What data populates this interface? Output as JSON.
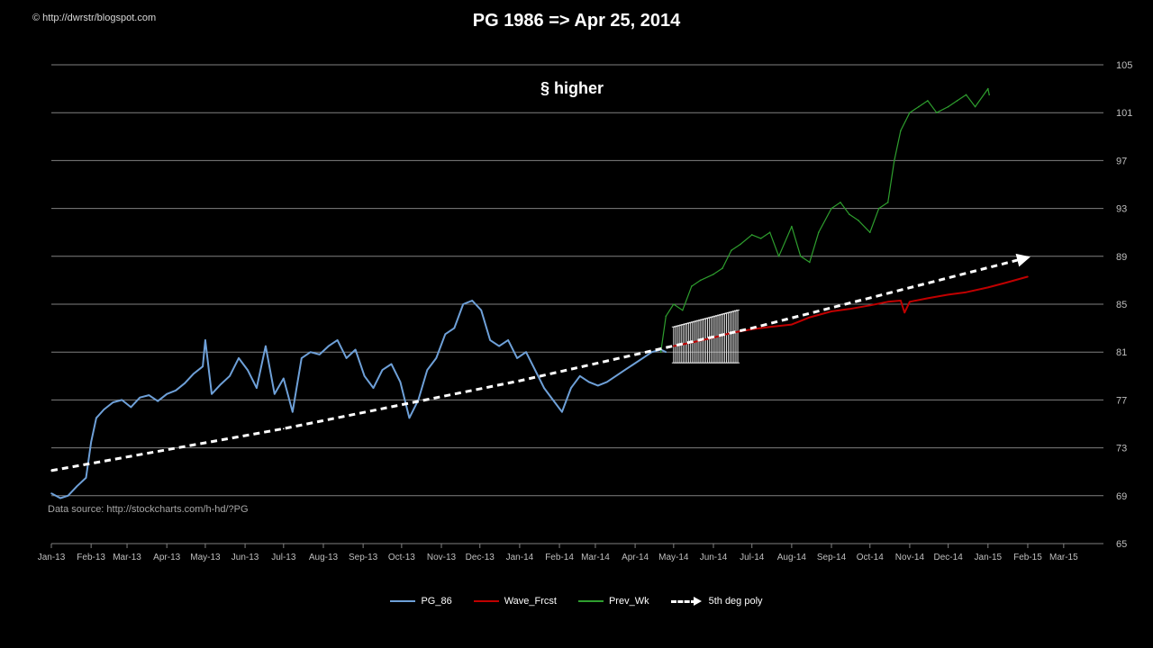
{
  "header": {
    "title": "PG 1986 => Apr 25, 2014",
    "copyright": "© http://dwrstr/blogspot.com",
    "annotation": "§  higher",
    "source": "Data source: http://stockcharts.com/h-hd/?PG"
  },
  "colors": {
    "background": "#000000",
    "gridline": "#808080",
    "pg86": "#6ea0d8",
    "wave_frcst": "#c00000",
    "prev_wk": "#2e9e2e",
    "poly": "#ffffff",
    "errorbar": "#e6e6e6",
    "text": "#ffffff"
  },
  "chart_data": {
    "type": "line",
    "title": "PG 1986 => Apr 25, 2014",
    "x_type": "date",
    "xlim": [
      "2013-01-01",
      "2015-04-01"
    ],
    "ylim": [
      65,
      105
    ],
    "y_axis_side": "right",
    "y_ticks": [
      65,
      69,
      73,
      77,
      81,
      85,
      89,
      93,
      97,
      101,
      105
    ],
    "x_tick_labels": [
      "Jan-13",
      "Feb-13",
      "Mar-13",
      "Apr-13",
      "May-13",
      "Jun-13",
      "Jul-13",
      "Aug-13",
      "Sep-13",
      "Oct-13",
      "Nov-13",
      "Dec-13",
      "Jan-14",
      "Feb-14",
      "Mar-14",
      "Apr-14",
      "May-14",
      "Jun-14",
      "Jul-14",
      "Aug-14",
      "Sep-14",
      "Oct-14",
      "Nov-14",
      "Dec-14",
      "Jan-15",
      "Feb-15",
      "Mar-15"
    ],
    "x_tick_dates": [
      "2013-01-01",
      "2013-02-01",
      "2013-03-01",
      "2013-04-01",
      "2013-05-01",
      "2013-06-01",
      "2013-07-01",
      "2013-08-01",
      "2013-09-01",
      "2013-10-01",
      "2013-11-01",
      "2013-12-01",
      "2014-01-01",
      "2014-02-01",
      "2014-03-01",
      "2014-04-01",
      "2014-05-01",
      "2014-06-01",
      "2014-07-01",
      "2014-08-01",
      "2014-09-01",
      "2014-10-01",
      "2014-11-01",
      "2014-12-01",
      "2015-01-01",
      "2015-02-01",
      "2015-03-01"
    ],
    "grid": true,
    "legend_position": "bottom",
    "series": [
      {
        "name": "PG_86",
        "color": "#6ea0d8",
        "x": [
          "2013-01-01",
          "2013-01-08",
          "2013-01-14",
          "2013-01-21",
          "2013-01-28",
          "2013-02-01",
          "2013-02-05",
          "2013-02-11",
          "2013-02-18",
          "2013-02-25",
          "2013-03-04",
          "2013-03-11",
          "2013-03-18",
          "2013-03-25",
          "2013-04-01",
          "2013-04-08",
          "2013-04-15",
          "2013-04-22",
          "2013-04-29",
          "2013-05-01",
          "2013-05-06",
          "2013-05-13",
          "2013-05-20",
          "2013-05-27",
          "2013-06-03",
          "2013-06-10",
          "2013-06-17",
          "2013-06-24",
          "2013-07-01",
          "2013-07-08",
          "2013-07-15",
          "2013-07-22",
          "2013-07-29",
          "2013-08-05",
          "2013-08-12",
          "2013-08-19",
          "2013-08-26",
          "2013-09-02",
          "2013-09-09",
          "2013-09-16",
          "2013-09-23",
          "2013-09-30",
          "2013-10-07",
          "2013-10-14",
          "2013-10-21",
          "2013-10-28",
          "2013-11-04",
          "2013-11-11",
          "2013-11-18",
          "2013-11-25",
          "2013-12-02",
          "2013-12-09",
          "2013-12-16",
          "2013-12-23",
          "2013-12-30",
          "2014-01-06",
          "2014-01-13",
          "2014-01-20",
          "2014-01-27",
          "2014-02-03",
          "2014-02-10",
          "2014-02-17",
          "2014-02-24",
          "2014-03-03",
          "2014-03-10",
          "2014-03-17",
          "2014-03-24",
          "2014-03-31",
          "2014-04-07",
          "2014-04-14",
          "2014-04-21",
          "2014-04-25"
        ],
        "values": [
          69.2,
          68.8,
          69.0,
          69.8,
          70.5,
          73.5,
          75.5,
          76.2,
          76.8,
          77.0,
          76.4,
          77.2,
          77.4,
          76.9,
          77.5,
          77.8,
          78.4,
          79.2,
          79.8,
          82.0,
          77.5,
          78.3,
          79.0,
          80.5,
          79.5,
          78.0,
          81.5,
          77.5,
          78.8,
          76.0,
          80.5,
          81.0,
          80.8,
          81.5,
          82.0,
          80.5,
          81.2,
          79.0,
          78.0,
          79.5,
          80.0,
          78.5,
          75.5,
          77.0,
          79.5,
          80.5,
          82.5,
          83.0,
          85.0,
          85.3,
          84.5,
          82.0,
          81.5,
          82.0,
          80.5,
          81.0,
          79.5,
          78.0,
          77.0,
          76.0,
          78.0,
          79.0,
          78.5,
          78.2,
          78.5,
          79.0,
          79.5,
          80.0,
          80.5,
          81.0,
          81.2,
          81.0
        ]
      },
      {
        "name": "Wave_Frcst",
        "color": "#c00000",
        "x": [
          "2014-05-01",
          "2014-05-15",
          "2014-06-01",
          "2014-06-15",
          "2014-07-01",
          "2014-07-15",
          "2014-08-01",
          "2014-08-15",
          "2014-09-01",
          "2014-09-15",
          "2014-10-01",
          "2014-10-15",
          "2014-10-25",
          "2014-10-28",
          "2014-11-01",
          "2014-11-15",
          "2014-12-01",
          "2014-12-15",
          "2015-01-01",
          "2015-01-15",
          "2015-02-01"
        ],
        "values": [
          81.5,
          81.8,
          82.2,
          82.6,
          82.9,
          83.1,
          83.3,
          83.9,
          84.4,
          84.6,
          84.9,
          85.2,
          85.3,
          84.3,
          85.2,
          85.5,
          85.8,
          86.0,
          86.4,
          86.8,
          87.3
        ]
      },
      {
        "name": "Prev_Wk",
        "color": "#2e9e2e",
        "x": [
          "2014-04-21",
          "2014-04-25",
          "2014-05-01",
          "2014-05-08",
          "2014-05-15",
          "2014-05-22",
          "2014-06-01",
          "2014-06-08",
          "2014-06-15",
          "2014-06-22",
          "2014-07-01",
          "2014-07-08",
          "2014-07-15",
          "2014-07-22",
          "2014-08-01",
          "2014-08-08",
          "2014-08-15",
          "2014-08-22",
          "2014-09-01",
          "2014-09-08",
          "2014-09-15",
          "2014-09-22",
          "2014-10-01",
          "2014-10-08",
          "2014-10-15",
          "2014-10-20",
          "2014-10-25",
          "2014-11-01",
          "2014-11-08",
          "2014-11-15",
          "2014-11-22",
          "2014-12-01",
          "2014-12-08",
          "2014-12-15",
          "2014-12-22",
          "2015-01-01",
          "2015-01-02"
        ],
        "values": [
          81.0,
          84.0,
          85.0,
          84.5,
          86.5,
          87.0,
          87.5,
          88.0,
          89.5,
          90.0,
          90.8,
          90.5,
          91.0,
          89.0,
          91.5,
          89.0,
          88.5,
          91.0,
          93.0,
          93.5,
          92.5,
          92.0,
          91.0,
          93.0,
          93.5,
          97.0,
          99.5,
          101.0,
          101.5,
          102.0,
          101.0,
          101.5,
          102.0,
          102.5,
          101.5,
          103.0,
          102.5
        ]
      },
      {
        "name": "5th deg poly",
        "color": "#ffffff",
        "dashed": true,
        "arrow": true,
        "x": [
          "2013-01-01",
          "2013-07-01",
          "2014-01-01",
          "2014-07-01",
          "2015-02-01"
        ],
        "values": [
          71.1,
          74.6,
          78.6,
          83.0,
          88.9
        ]
      }
    ],
    "error_band": {
      "name": "forecast range",
      "x_start": "2014-05-01",
      "x_end": "2014-06-20",
      "center_start": 81.6,
      "center_end": 82.3,
      "half_width_start": 1.5,
      "half_width_end": 2.2
    }
  }
}
